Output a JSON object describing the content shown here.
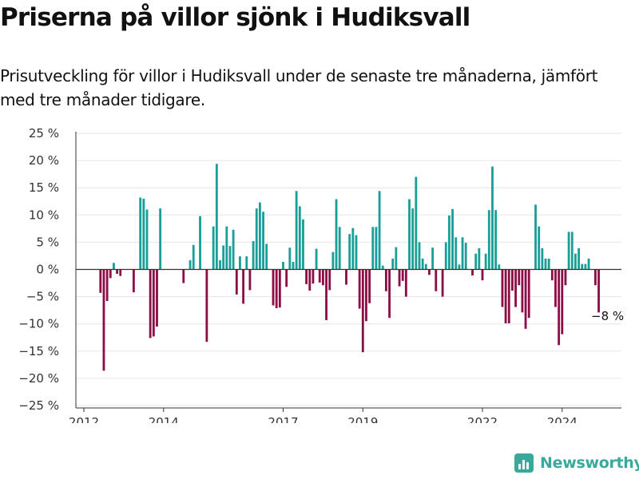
{
  "header": {
    "title": "Priserna på villor sjönk i Hudiksvall",
    "subtitle": "Prisutveckling för villor i Hudiksvall under de senaste tre månaderna, jämfört med tre månader tidigare."
  },
  "brand": {
    "name": "Newsworthy",
    "icon": "newsworthy-logo-icon"
  },
  "colors": {
    "positive": "#1a9e98",
    "negative": "#8c0e47",
    "axis": "#333333",
    "grid": "#e6e6e6"
  },
  "chart_data": {
    "type": "bar",
    "title": "",
    "xlabel": "",
    "ylabel": "",
    "ylim": [
      -25,
      25
    ],
    "y_ticks": [
      25,
      20,
      15,
      10,
      5,
      0,
      -5,
      -10,
      -15,
      -20,
      -25
    ],
    "y_tick_labels": [
      "25 %",
      "20 %",
      "15 %",
      "10 %",
      "5 %",
      "0 %",
      "−5 %",
      "−10 %",
      "−15 %",
      "−20 %",
      "−25 %"
    ],
    "x_ticks": [
      {
        "year": 2012,
        "label": "2012"
      },
      {
        "year": 2014,
        "label": "2014"
      },
      {
        "year": 2017,
        "label": "2017"
      },
      {
        "year": 2019,
        "label": "2019"
      },
      {
        "year": 2022,
        "label": "2022"
      },
      {
        "year": 2024,
        "label": "2024"
      }
    ],
    "x_start": "2012-01",
    "grid": true,
    "annotation": {
      "text": "−8 %",
      "month": "2025-03",
      "value": -8
    },
    "values": [
      null,
      null,
      null,
      null,
      null,
      -4.3,
      -18.6,
      -5.8,
      -1.6,
      1.2,
      -0.8,
      -1.2,
      null,
      null,
      null,
      -4.2,
      null,
      13.2,
      13.0,
      11.0,
      -12.6,
      -12.3,
      -10.5,
      11.2,
      null,
      null,
      null,
      null,
      null,
      null,
      -2.5,
      null,
      1.7,
      4.5,
      null,
      9.8,
      null,
      -13.3,
      null,
      7.9,
      19.4,
      1.7,
      4.4,
      7.9,
      4.3,
      7.3,
      -4.6,
      2.4,
      -6.3,
      2.4,
      -3.8,
      5.2,
      11.2,
      12.3,
      10.6,
      4.7,
      null,
      -6.6,
      -7.1,
      -7.0,
      1.4,
      -3.2,
      4.0,
      1.4,
      14.4,
      11.6,
      9.2,
      -2.7,
      -3.9,
      -2.6,
      3.8,
      -2.4,
      -2.9,
      -9.3,
      -3.8,
      3.2,
      12.9,
      7.8,
      null,
      -2.8,
      6.5,
      7.6,
      6.3,
      -7.2,
      -15.2,
      -9.5,
      -6.2,
      7.8,
      7.8,
      14.4,
      0.7,
      -4.0,
      -8.9,
      2.0,
      4.1,
      -3.1,
      -2.1,
      -5.0,
      12.9,
      11.2,
      17.0,
      5.0,
      2.0,
      1.0,
      -1.0,
      4.0,
      -4.0,
      null,
      -5.0,
      5.0,
      9.9,
      11.1,
      5.9,
      0.9,
      5.9,
      4.9,
      null,
      -1.1,
      2.9,
      3.9,
      -2.0,
      2.9,
      10.9,
      18.9,
      10.9,
      0.9,
      -6.9,
      -9.9,
      -9.9,
      -3.9,
      -6.9,
      -2.9,
      -7.9,
      -10.9,
      -8.9,
      null,
      11.9,
      7.9,
      3.9,
      2.0,
      2.0,
      -2.0,
      -6.9,
      -13.9,
      -11.9,
      -2.9,
      6.9,
      6.9,
      2.9,
      3.9,
      1.0,
      1.0,
      2.0,
      null,
      -2.9,
      -7.9
    ]
  }
}
